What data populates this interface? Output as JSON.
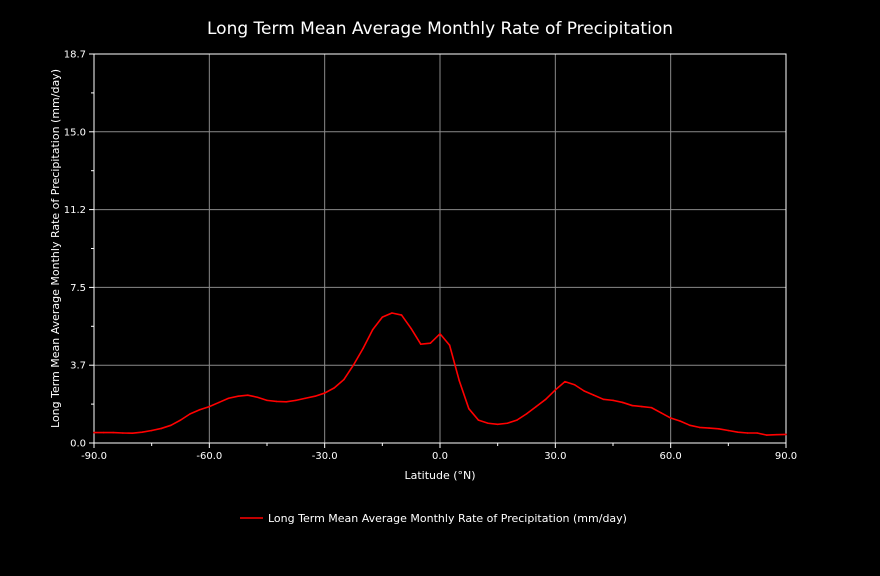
{
  "chart_data": {
    "type": "line",
    "title": "Long Term Mean Average Monthly Rate of Precipitation",
    "xlabel": "Latitude (°N)",
    "ylabel": "Long Term Mean Average Monthly Rate of Precipitation (mm/day)",
    "xlim": [
      -90,
      90
    ],
    "ylim": [
      0,
      18.7
    ],
    "xticks": [
      -90,
      -60,
      -30,
      0,
      30,
      60,
      90
    ],
    "xtick_labels": [
      "-90.0",
      "-60.0",
      "-30.0",
      "0.0",
      "30.0",
      "60.0",
      "90.0"
    ],
    "yticks": [
      0,
      3.74,
      7.48,
      11.22,
      14.96,
      18.7
    ],
    "ytick_labels": [
      "0.0",
      "3.7",
      "7.5",
      "11.2",
      "15.0",
      "18.7"
    ],
    "grid": true,
    "legend_position": "bottom-center",
    "colors": {
      "background": "#000000",
      "series": "#ff0000",
      "grid": "#8a8a8a",
      "axis": "#ffffff"
    },
    "series": [
      {
        "name": "Long Term Mean Average Monthly Rate of Precipitation (mm/day)",
        "x": [
          -90,
          -87.5,
          -85,
          -82.5,
          -80,
          -77.5,
          -75,
          -72.5,
          -70,
          -67.5,
          -65,
          -62.5,
          -60,
          -57.5,
          -55,
          -52.5,
          -50,
          -47.5,
          -45,
          -42.5,
          -40,
          -37.5,
          -35,
          -32.5,
          -30,
          -27.5,
          -25,
          -22.5,
          -20,
          -17.5,
          -15,
          -12.5,
          -10,
          -7.5,
          -5,
          -2.5,
          0,
          2.5,
          5,
          7.5,
          10,
          12.5,
          15,
          17.5,
          20,
          22.5,
          25,
          27.5,
          30,
          32.5,
          35,
          37.5,
          40,
          42.5,
          45,
          47.5,
          50,
          52.5,
          55,
          57.5,
          60,
          62.5,
          65,
          67.5,
          70,
          72.5,
          75,
          77.5,
          80,
          82.5,
          85,
          87.5,
          90
        ],
        "y": [
          0.5,
          0.5,
          0.5,
          0.48,
          0.47,
          0.52,
          0.6,
          0.7,
          0.85,
          1.1,
          1.4,
          1.6,
          1.75,
          1.95,
          2.15,
          2.25,
          2.3,
          2.2,
          2.05,
          2.0,
          1.98,
          2.05,
          2.15,
          2.25,
          2.4,
          2.65,
          3.05,
          3.75,
          4.55,
          5.45,
          6.05,
          6.25,
          6.15,
          5.5,
          4.75,
          4.8,
          5.25,
          4.7,
          3.0,
          1.65,
          1.1,
          0.95,
          0.9,
          0.95,
          1.1,
          1.4,
          1.75,
          2.1,
          2.55,
          2.95,
          2.8,
          2.5,
          2.3,
          2.1,
          2.05,
          1.95,
          1.8,
          1.75,
          1.7,
          1.45,
          1.2,
          1.05,
          0.85,
          0.75,
          0.72,
          0.68,
          0.6,
          0.52,
          0.48,
          0.48,
          0.38,
          0.4,
          0.41
        ]
      }
    ]
  }
}
